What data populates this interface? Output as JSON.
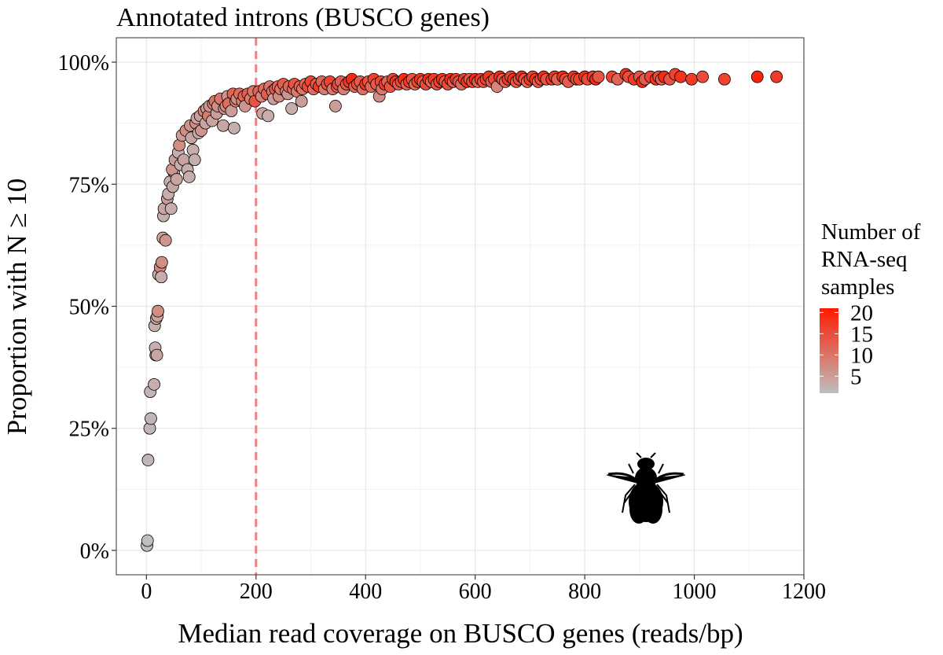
{
  "chart_data": {
    "type": "scatter",
    "title": "Annotated introns (BUSCO genes)",
    "xlabel": "Median read coverage on BUSCO genes (reads/bp)",
    "ylabel": "Proportion with N ≥ 10",
    "xlim": [
      -55,
      1200
    ],
    "ylim": [
      -0.05,
      1.05
    ],
    "x_ticks": [
      0,
      200,
      400,
      600,
      800,
      1000,
      1200
    ],
    "x_tick_labels": [
      "0",
      "200",
      "400",
      "600",
      "800",
      "1000",
      "1200"
    ],
    "y_ticks": [
      0,
      0.25,
      0.5,
      0.75,
      1.0
    ],
    "y_tick_labels": [
      "0%",
      "25%",
      "50%",
      "75%",
      "100%"
    ],
    "grid": true,
    "reference_line": {
      "axis": "x",
      "value": 200,
      "style": "dashed",
      "color": "#f08080"
    },
    "color_scale": {
      "title": [
        "Number of",
        "RNA-seq",
        "samples"
      ],
      "low_color": "#bebebe",
      "high_color": "#ff1a00",
      "range": [
        1,
        21
      ],
      "breaks": [
        5,
        10,
        15,
        20
      ],
      "break_labels": [
        "5",
        "10",
        "15",
        "20"
      ]
    },
    "legend_position": "right",
    "marker_icon": "fly-silhouette-icon",
    "points": [
      [
        1,
        0.01,
        1
      ],
      [
        2,
        0.02,
        1
      ],
      [
        3,
        0.185,
        2
      ],
      [
        6,
        0.25,
        2
      ],
      [
        8,
        0.27,
        2
      ],
      [
        7,
        0.325,
        2
      ],
      [
        14,
        0.34,
        3
      ],
      [
        17,
        0.4,
        3
      ],
      [
        16,
        0.415,
        3
      ],
      [
        19,
        0.4,
        4
      ],
      [
        15,
        0.46,
        3
      ],
      [
        18,
        0.475,
        4
      ],
      [
        20,
        0.48,
        4
      ],
      [
        21,
        0.49,
        7
      ],
      [
        22,
        0.565,
        3
      ],
      [
        25,
        0.58,
        8
      ],
      [
        28,
        0.59,
        7
      ],
      [
        27,
        0.56,
        3
      ],
      [
        30,
        0.64,
        4
      ],
      [
        35,
        0.635,
        6
      ],
      [
        31,
        0.685,
        3
      ],
      [
        32,
        0.7,
        4
      ],
      [
        38,
        0.72,
        5
      ],
      [
        40,
        0.73,
        3
      ],
      [
        45,
        0.7,
        3
      ],
      [
        43,
        0.755,
        3
      ],
      [
        48,
        0.745,
        4
      ],
      [
        50,
        0.775,
        4
      ],
      [
        47,
        0.78,
        6
      ],
      [
        55,
        0.76,
        4
      ],
      [
        52,
        0.8,
        5
      ],
      [
        58,
        0.815,
        3
      ],
      [
        60,
        0.83,
        7
      ],
      [
        62,
        0.79,
        3
      ],
      [
        65,
        0.85,
        5
      ],
      [
        68,
        0.8,
        4
      ],
      [
        72,
        0.86,
        7
      ],
      [
        75,
        0.78,
        3
      ],
      [
        78,
        0.765,
        3
      ],
      [
        80,
        0.87,
        6
      ],
      [
        82,
        0.845,
        4
      ],
      [
        85,
        0.82,
        3
      ],
      [
        88,
        0.8,
        3
      ],
      [
        90,
        0.875,
        7
      ],
      [
        92,
        0.885,
        4
      ],
      [
        95,
        0.855,
        3
      ],
      [
        98,
        0.89,
        5
      ],
      [
        100,
        0.86,
        6
      ],
      [
        105,
        0.9,
        8
      ],
      [
        108,
        0.875,
        4
      ],
      [
        110,
        0.905,
        5
      ],
      [
        113,
        0.89,
        9
      ],
      [
        115,
        0.91,
        6
      ],
      [
        120,
        0.88,
        4
      ],
      [
        122,
        0.915,
        8
      ],
      [
        125,
        0.92,
        10
      ],
      [
        128,
        0.895,
        5
      ],
      [
        130,
        0.91,
        7
      ],
      [
        135,
        0.925,
        10
      ],
      [
        140,
        0.87,
        4
      ],
      [
        142,
        0.905,
        6
      ],
      [
        145,
        0.91,
        8
      ],
      [
        148,
        0.93,
        6
      ],
      [
        150,
        0.915,
        11
      ],
      [
        155,
        0.9,
        5
      ],
      [
        158,
        0.935,
        12
      ],
      [
        160,
        0.865,
        3
      ],
      [
        163,
        0.92,
        9
      ],
      [
        165,
        0.925,
        7
      ],
      [
        170,
        0.935,
        11
      ],
      [
        175,
        0.92,
        8
      ],
      [
        178,
        0.93,
        12
      ],
      [
        180,
        0.91,
        6
      ],
      [
        185,
        0.935,
        13
      ],
      [
        190,
        0.925,
        9
      ],
      [
        195,
        0.94,
        10
      ],
      [
        198,
        0.92,
        14
      ],
      [
        205,
        0.94,
        12
      ],
      [
        210,
        0.93,
        8
      ],
      [
        212,
        0.895,
        4
      ],
      [
        215,
        0.945,
        11
      ],
      [
        220,
        0.935,
        13
      ],
      [
        222,
        0.89,
        3
      ],
      [
        225,
        0.95,
        10
      ],
      [
        230,
        0.94,
        9
      ],
      [
        232,
        0.925,
        5
      ],
      [
        235,
        0.945,
        14
      ],
      [
        240,
        0.95,
        12
      ],
      [
        242,
        0.93,
        7
      ],
      [
        245,
        0.945,
        10
      ],
      [
        250,
        0.955,
        13
      ],
      [
        255,
        0.94,
        8
      ],
      [
        258,
        0.935,
        6
      ],
      [
        260,
        0.95,
        12
      ],
      [
        265,
        0.905,
        3
      ],
      [
        268,
        0.945,
        11
      ],
      [
        270,
        0.955,
        14
      ],
      [
        275,
        0.94,
        9
      ],
      [
        280,
        0.95,
        13
      ],
      [
        283,
        0.92,
        5
      ],
      [
        285,
        0.945,
        10
      ],
      [
        290,
        0.955,
        12
      ],
      [
        295,
        0.95,
        15
      ],
      [
        300,
        0.96,
        16
      ],
      [
        305,
        0.945,
        11
      ],
      [
        310,
        0.955,
        13
      ],
      [
        315,
        0.95,
        17
      ],
      [
        320,
        0.96,
        12
      ],
      [
        325,
        0.945,
        9
      ],
      [
        330,
        0.955,
        14
      ],
      [
        335,
        0.96,
        16
      ],
      [
        340,
        0.945,
        10
      ],
      [
        345,
        0.91,
        5
      ],
      [
        348,
        0.95,
        12
      ],
      [
        350,
        0.955,
        15
      ],
      [
        355,
        0.96,
        13
      ],
      [
        360,
        0.945,
        9
      ],
      [
        365,
        0.955,
        14
      ],
      [
        370,
        0.96,
        17
      ],
      [
        375,
        0.965,
        19
      ],
      [
        380,
        0.95,
        12
      ],
      [
        385,
        0.955,
        15
      ],
      [
        390,
        0.96,
        13
      ],
      [
        395,
        0.945,
        11
      ],
      [
        400,
        0.955,
        18
      ],
      [
        405,
        0.96,
        14
      ],
      [
        410,
        0.95,
        12
      ],
      [
        415,
        0.965,
        16
      ],
      [
        420,
        0.955,
        13
      ],
      [
        425,
        0.93,
        7
      ],
      [
        428,
        0.96,
        15
      ],
      [
        430,
        0.945,
        10
      ],
      [
        435,
        0.955,
        17
      ],
      [
        440,
        0.96,
        12
      ],
      [
        445,
        0.95,
        14
      ],
      [
        450,
        0.965,
        16
      ],
      [
        455,
        0.96,
        18
      ],
      [
        460,
        0.955,
        13
      ],
      [
        465,
        0.96,
        15
      ],
      [
        470,
        0.965,
        19
      ],
      [
        475,
        0.955,
        12
      ],
      [
        480,
        0.96,
        17
      ],
      [
        485,
        0.965,
        14
      ],
      [
        490,
        0.955,
        11
      ],
      [
        495,
        0.96,
        16
      ],
      [
        500,
        0.965,
        18
      ],
      [
        505,
        0.96,
        13
      ],
      [
        510,
        0.955,
        15
      ],
      [
        515,
        0.965,
        19
      ],
      [
        520,
        0.96,
        12
      ],
      [
        525,
        0.965,
        17
      ],
      [
        530,
        0.955,
        14
      ],
      [
        535,
        0.96,
        16
      ],
      [
        540,
        0.965,
        18
      ],
      [
        545,
        0.96,
        13
      ],
      [
        550,
        0.955,
        15
      ],
      [
        555,
        0.965,
        19
      ],
      [
        560,
        0.96,
        12
      ],
      [
        565,
        0.965,
        17
      ],
      [
        570,
        0.96,
        14
      ],
      [
        575,
        0.955,
        11
      ],
      [
        580,
        0.965,
        16
      ],
      [
        585,
        0.96,
        18
      ],
      [
        590,
        0.965,
        13
      ],
      [
        595,
        0.96,
        15
      ],
      [
        600,
        0.965,
        19
      ],
      [
        605,
        0.96,
        12
      ],
      [
        610,
        0.965,
        17
      ],
      [
        615,
        0.96,
        14
      ],
      [
        620,
        0.965,
        16
      ],
      [
        625,
        0.97,
        18
      ],
      [
        630,
        0.96,
        13
      ],
      [
        635,
        0.965,
        15
      ],
      [
        640,
        0.95,
        8
      ],
      [
        645,
        0.97,
        19
      ],
      [
        650,
        0.965,
        14
      ],
      [
        655,
        0.96,
        12
      ],
      [
        660,
        0.965,
        17
      ],
      [
        665,
        0.97,
        16
      ],
      [
        670,
        0.965,
        18
      ],
      [
        675,
        0.96,
        13
      ],
      [
        680,
        0.965,
        15
      ],
      [
        685,
        0.97,
        19
      ],
      [
        690,
        0.965,
        14
      ],
      [
        695,
        0.96,
        12
      ],
      [
        700,
        0.965,
        17
      ],
      [
        705,
        0.97,
        16
      ],
      [
        710,
        0.965,
        18
      ],
      [
        715,
        0.96,
        13
      ],
      [
        720,
        0.965,
        15
      ],
      [
        725,
        0.97,
        19
      ],
      [
        730,
        0.965,
        14
      ],
      [
        740,
        0.965,
        17
      ],
      [
        745,
        0.97,
        18
      ],
      [
        750,
        0.965,
        12
      ],
      [
        760,
        0.97,
        19
      ],
      [
        765,
        0.965,
        15
      ],
      [
        770,
        0.96,
        13
      ],
      [
        780,
        0.97,
        18
      ],
      [
        785,
        0.965,
        14
      ],
      [
        790,
        0.965,
        16
      ],
      [
        800,
        0.97,
        19
      ],
      [
        805,
        0.965,
        15
      ],
      [
        815,
        0.97,
        17
      ],
      [
        820,
        0.965,
        19
      ],
      [
        825,
        0.97,
        14
      ],
      [
        850,
        0.97,
        16
      ],
      [
        860,
        0.965,
        12
      ],
      [
        875,
        0.975,
        18
      ],
      [
        880,
        0.97,
        15
      ],
      [
        890,
        0.965,
        17
      ],
      [
        900,
        0.97,
        14
      ],
      [
        905,
        0.96,
        19
      ],
      [
        910,
        0.965,
        13
      ],
      [
        920,
        0.97,
        16
      ],
      [
        930,
        0.965,
        18
      ],
      [
        935,
        0.97,
        15
      ],
      [
        940,
        0.965,
        12
      ],
      [
        945,
        0.97,
        19
      ],
      [
        955,
        0.965,
        14
      ],
      [
        965,
        0.975,
        16
      ],
      [
        975,
        0.97,
        18
      ],
      [
        995,
        0.965,
        17
      ],
      [
        1015,
        0.97,
        15
      ],
      [
        1055,
        0.965,
        16
      ],
      [
        1115,
        0.97,
        20
      ],
      [
        1150,
        0.97,
        17
      ]
    ]
  }
}
